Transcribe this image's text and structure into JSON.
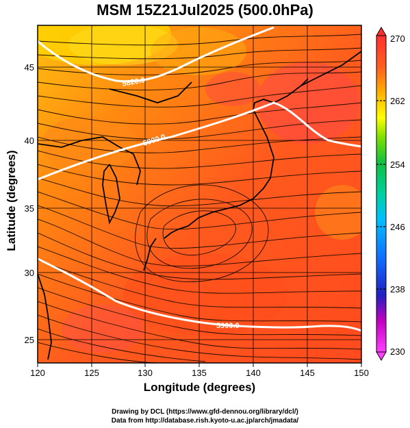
{
  "title": "MSM 15Z21Jul2025 (500.0hPa)",
  "xlabel": "Longitude (degrees)",
  "ylabel": "Latitude  (degrees)",
  "x_ticks": [
    "120",
    "125",
    "130",
    "135",
    "140",
    "145",
    "150"
  ],
  "y_ticks": [
    "25",
    "30",
    "35",
    "40",
    "45"
  ],
  "colorbar_ticks": [
    "230",
    "238",
    "246",
    "254",
    "262",
    "270"
  ],
  "contour_labels": [
    "5820.0",
    "5900.0",
    "5900.0"
  ],
  "credits": {
    "line1": "Drawing by DCL (https://www.gfd-dennou.org/library/dcl/)",
    "line2": "Data from http://database.rish.kyoto-u.ac.jp/arch/jmadata/"
  },
  "colors": {
    "field_main": "#ff5a1e",
    "field_cool": "#ffd400",
    "contour": "#ffffff"
  }
}
